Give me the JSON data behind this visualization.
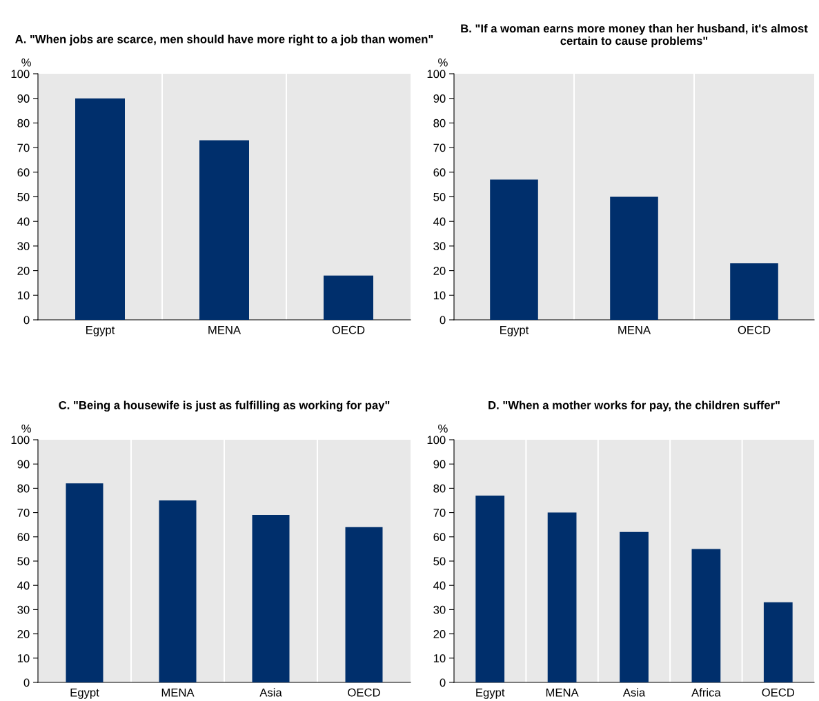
{
  "chart_data": [
    {
      "type": "bar",
      "title": "A. \"When jobs are scarce, men should have more right to a job than women\"",
      "ylabel": "%",
      "categories": [
        "Egypt",
        "MENA",
        "OECD"
      ],
      "values": [
        90,
        73,
        18
      ],
      "color": "#002f6c",
      "ylim": [
        0,
        100
      ],
      "yticks": [
        0,
        10,
        20,
        30,
        40,
        50,
        60,
        70,
        80,
        90,
        100
      ],
      "grid": "x",
      "legend": false
    },
    {
      "type": "bar",
      "title": "B. \"If a woman earns more money than her husband, it's almost certain to cause problems\"",
      "ylabel": "%",
      "categories": [
        "Egypt",
        "MENA",
        "OECD"
      ],
      "values": [
        57,
        50,
        23
      ],
      "color": "#002f6c",
      "ylim": [
        0,
        100
      ],
      "yticks": [
        0,
        10,
        20,
        30,
        40,
        50,
        60,
        70,
        80,
        90,
        100
      ],
      "grid": "x",
      "legend": false
    },
    {
      "type": "bar",
      "title": "C. \"Being a housewife is just as fulfilling as working for pay\"",
      "ylabel": "%",
      "categories": [
        "Egypt",
        "MENA",
        "Asia",
        "OECD"
      ],
      "values": [
        82,
        75,
        69,
        64
      ],
      "color": "#002f6c",
      "ylim": [
        0,
        100
      ],
      "yticks": [
        0,
        10,
        20,
        30,
        40,
        50,
        60,
        70,
        80,
        90,
        100
      ],
      "grid": "x",
      "legend": false
    },
    {
      "type": "bar",
      "title": "D. \"When a mother works for pay, the children suffer\"",
      "ylabel": "%",
      "categories": [
        "Egypt",
        "MENA",
        "Asia",
        "Africa",
        "OECD"
      ],
      "values": [
        77,
        70,
        62,
        55,
        33
      ],
      "color": "#002f6c",
      "ylim": [
        0,
        100
      ],
      "yticks": [
        0,
        10,
        20,
        30,
        40,
        50,
        60,
        70,
        80,
        90,
        100
      ],
      "grid": "x",
      "legend": false
    }
  ]
}
